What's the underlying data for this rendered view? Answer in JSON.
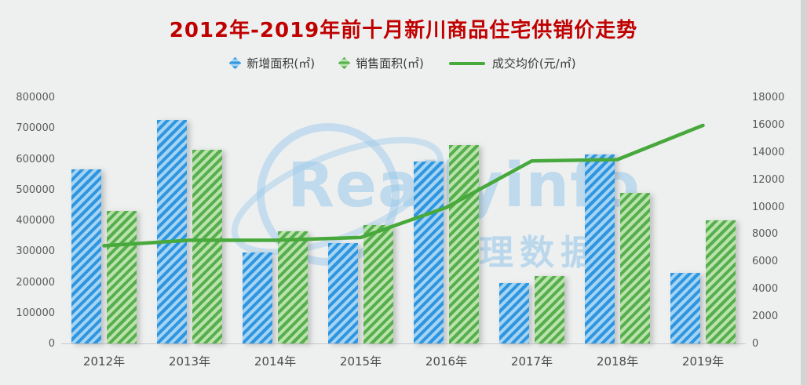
{
  "chart_data": {
    "type": "bar",
    "title": "2012年-2019年前十月新川商品住宅供销价走势",
    "categories": [
      "2012年",
      "2013年",
      "2014年",
      "2015年",
      "2016年",
      "2017年",
      "2018年",
      "2019年"
    ],
    "series": [
      {
        "name": "新增面积(㎡)",
        "type": "bar",
        "axis": "left",
        "color": "#2e96e0",
        "values": [
          565000,
          725000,
          295000,
          325000,
          590000,
          195000,
          615000,
          230000
        ]
      },
      {
        "name": "销售面积(㎡)",
        "type": "bar",
        "axis": "left",
        "color": "#57ae4e",
        "values": [
          430000,
          630000,
          365000,
          385000,
          645000,
          220000,
          490000,
          400000
        ]
      },
      {
        "name": "成交均价(元/㎡)",
        "type": "line",
        "axis": "right",
        "color": "#47a83b",
        "values": [
          7200,
          7600,
          7600,
          7800,
          10000,
          13400,
          13500,
          16000
        ]
      }
    ],
    "left_axis": {
      "min": 0,
      "max": 800000,
      "step": 100000,
      "ticks": [
        "0",
        "100000",
        "200000",
        "300000",
        "400000",
        "500000",
        "600000",
        "700000",
        "800000"
      ]
    },
    "right_axis": {
      "min": 0,
      "max": 18000,
      "step": 2000,
      "ticks": [
        "0",
        "2000",
        "4000",
        "6000",
        "8000",
        "10000",
        "12000",
        "14000",
        "16000",
        "18000"
      ]
    },
    "legend_position": "top",
    "grid": false
  },
  "watermark": {
    "text": "Reallyinfo",
    "subtext": "理数据"
  },
  "colors": {
    "title": "#c00000",
    "axis_text": "#595959",
    "background": "#eef0f0"
  }
}
